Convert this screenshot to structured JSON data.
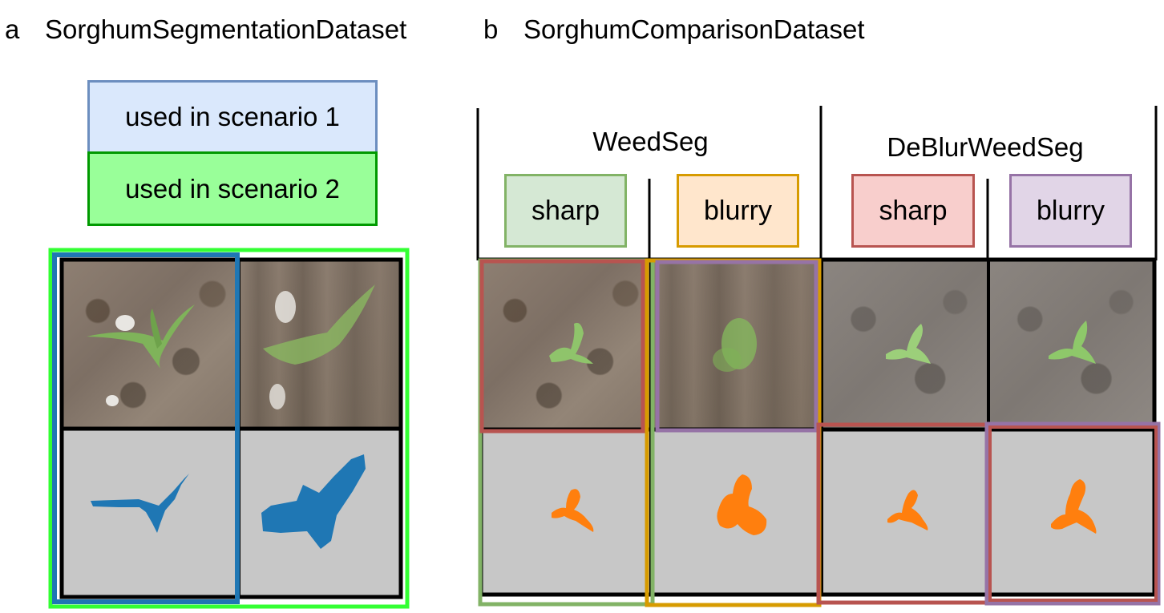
{
  "panel_a": {
    "letter": "a",
    "title": "SorghumSegmentationDataset",
    "legend": [
      {
        "label": "used in scenario 1",
        "fill": "#dae8fc",
        "border": "#6c8ebf"
      },
      {
        "label": "used in scenario 2",
        "fill": "#99ff99",
        "border": "#009900"
      }
    ],
    "colors": {
      "scenario1_frame": "#1f77b4",
      "scenario2_frame": "#33ff33",
      "mask_color": "#1f77b4"
    }
  },
  "panel_b": {
    "letter": "b",
    "title": "SorghumComparisonDataset",
    "groups": [
      {
        "label": "WeedSeg"
      },
      {
        "label": "DeBlurWeedSeg"
      }
    ],
    "tags": [
      {
        "label": "sharp",
        "fill": "#d5e8d4",
        "border": "#82b366"
      },
      {
        "label": "blurry",
        "fill": "#ffe6cc",
        "border": "#d79b00"
      },
      {
        "label": "sharp",
        "fill": "#f8cecc",
        "border": "#b85450"
      },
      {
        "label": "blurry",
        "fill": "#e1d5e7",
        "border": "#9673a6"
      }
    ],
    "colors": {
      "mask_color": "#ff7f0e"
    }
  }
}
